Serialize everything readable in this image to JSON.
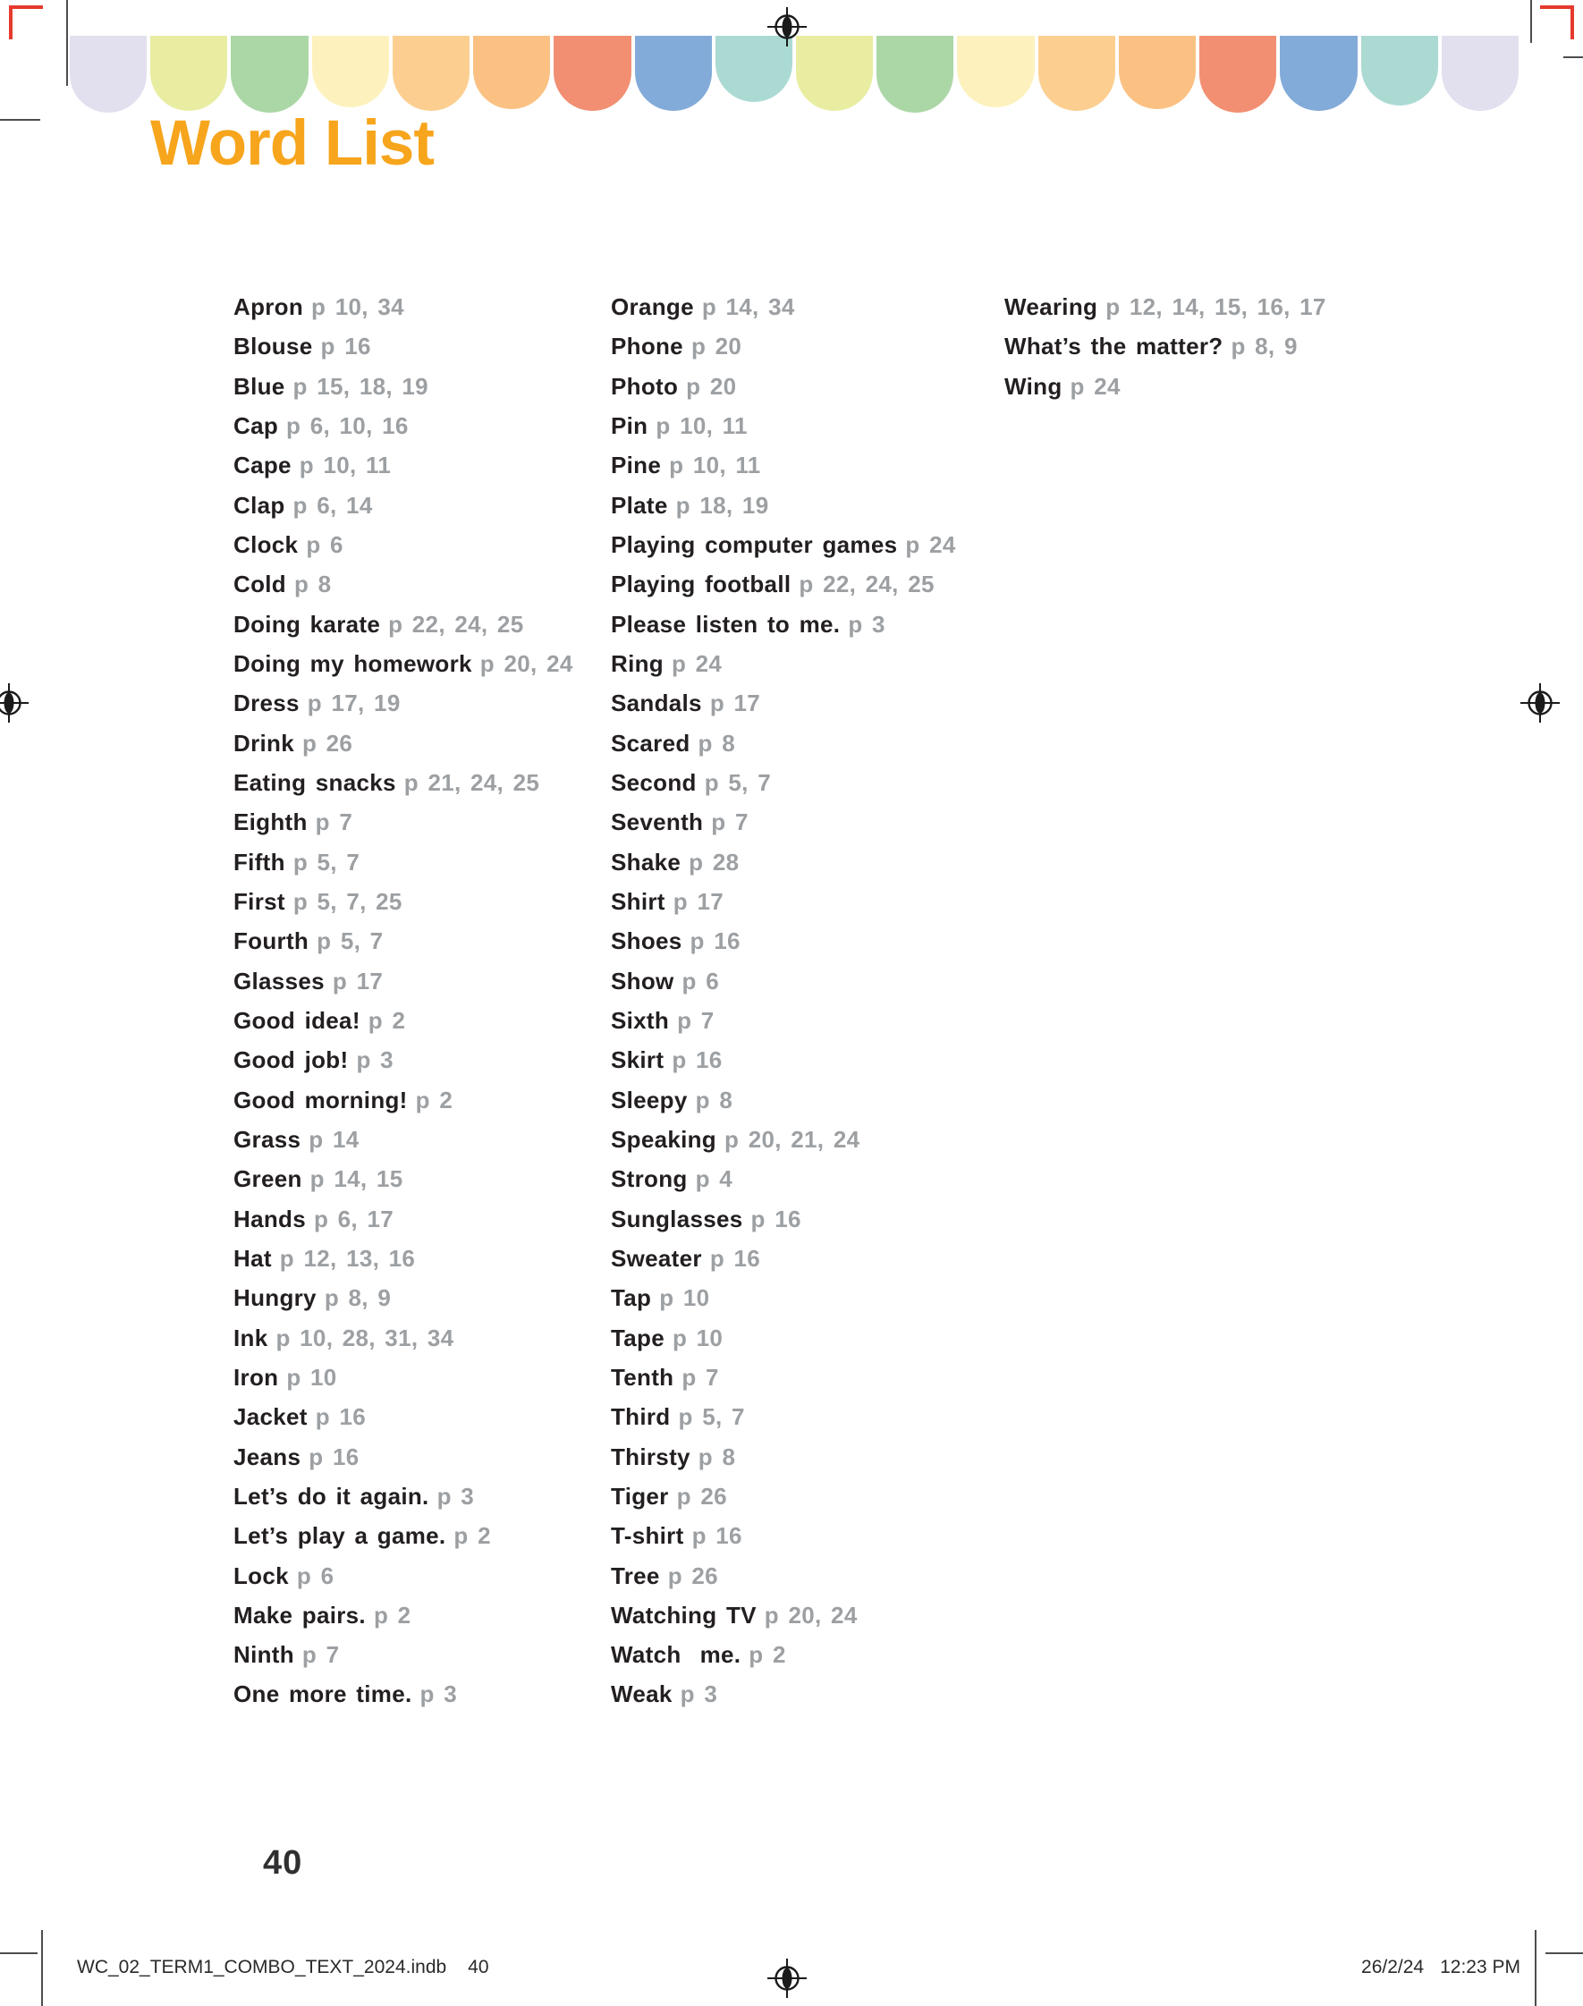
{
  "page": {
    "title": "Word List",
    "page_number": "40",
    "title_color": "#F7A51C",
    "word_color": "#231F20",
    "page_ref_color": "#9DA0A3"
  },
  "scallops": {
    "colors": [
      "#E2E0EE",
      "#E9EDA1",
      "#ABD7A6",
      "#FDF2BE",
      "#FCCF90",
      "#FBC183",
      "#F28F72",
      "#83ABD9",
      "#ABDAD3",
      "#E9EDA1",
      "#ABD7A6",
      "#FDF2BE",
      "#FCCF90",
      "#FBC183",
      "#F28F72",
      "#83ABD9",
      "#ABDAD3",
      "#E2E0EE"
    ]
  },
  "word_list": {
    "columns": [
      [
        {
          "word": "Apron",
          "pages": "p 10, 34"
        },
        {
          "word": "Blouse",
          "pages": "p 16"
        },
        {
          "word": "Blue",
          "pages": "p 15, 18, 19"
        },
        {
          "word": "Cap",
          "pages": "p 6, 10, 16"
        },
        {
          "word": "Cape",
          "pages": "p 10, 11"
        },
        {
          "word": "Clap",
          "pages": "p 6, 14"
        },
        {
          "word": "Clock",
          "pages": "p 6"
        },
        {
          "word": "Cold",
          "pages": "p 8"
        },
        {
          "word": "Doing karate",
          "pages": "p 22, 24, 25"
        },
        {
          "word": "Doing my homework",
          "pages": "p 20, 24"
        },
        {
          "word": "Dress",
          "pages": "p 17, 19"
        },
        {
          "word": "Drink",
          "pages": "p 26"
        },
        {
          "word": "Eating snacks",
          "pages": "p 21, 24, 25"
        },
        {
          "word": "Eighth",
          "pages": "p 7"
        },
        {
          "word": "Fifth",
          "pages": "p 5, 7"
        },
        {
          "word": "First",
          "pages": "p 5, 7, 25"
        },
        {
          "word": "Fourth",
          "pages": "p 5, 7"
        },
        {
          "word": "Glasses",
          "pages": "p 17"
        },
        {
          "word": "Good idea!",
          "pages": "p 2"
        },
        {
          "word": "Good job!",
          "pages": "p 3"
        },
        {
          "word": "Good morning!",
          "pages": "p 2"
        },
        {
          "word": "Grass",
          "pages": "p 14"
        },
        {
          "word": "Green",
          "pages": "p 14, 15"
        },
        {
          "word": "Hands",
          "pages": "p 6, 17"
        },
        {
          "word": "Hat",
          "pages": "p 12, 13, 16"
        },
        {
          "word": "Hungry",
          "pages": "p 8, 9"
        },
        {
          "word": "Ink",
          "pages": "p 10, 28, 31, 34"
        },
        {
          "word": "Iron",
          "pages": "p 10"
        },
        {
          "word": "Jacket",
          "pages": "p 16"
        },
        {
          "word": "Jeans",
          "pages": "p 16"
        },
        {
          "word": "Let’s do it again.",
          "pages": "p 3"
        },
        {
          "word": "Let’s play a game.",
          "pages": "p 2"
        },
        {
          "word": "Lock",
          "pages": "p 6"
        },
        {
          "word": "Make pairs.",
          "pages": "p 2"
        },
        {
          "word": "Ninth",
          "pages": "p 7"
        },
        {
          "word": "One more time.",
          "pages": "p 3"
        }
      ],
      [
        {
          "word": "Orange",
          "pages": "p 14, 34"
        },
        {
          "word": "Phone",
          "pages": "p 20"
        },
        {
          "word": "Photo",
          "pages": "p 20"
        },
        {
          "word": "Pin",
          "pages": "p 10, 11"
        },
        {
          "word": "Pine",
          "pages": "p 10, 11"
        },
        {
          "word": "Plate",
          "pages": "p 18, 19"
        },
        {
          "word": "Playing computer games",
          "pages": "p 24"
        },
        {
          "word": "Playing football",
          "pages": "p 22, 24, 25"
        },
        {
          "word": "Please listen to me.",
          "pages": "p 3"
        },
        {
          "word": "Ring",
          "pages": "p 24"
        },
        {
          "word": "Sandals",
          "pages": "p 17"
        },
        {
          "word": "Scared",
          "pages": "p 8"
        },
        {
          "word": "Second",
          "pages": "p 5, 7"
        },
        {
          "word": "Seventh",
          "pages": "p 7"
        },
        {
          "word": "Shake",
          "pages": "p 28"
        },
        {
          "word": "Shirt",
          "pages": "p 17"
        },
        {
          "word": "Shoes",
          "pages": "p 16"
        },
        {
          "word": "Show",
          "pages": "p 6"
        },
        {
          "word": "Sixth",
          "pages": "p 7"
        },
        {
          "word": "Skirt",
          "pages": "p 16"
        },
        {
          "word": "Sleepy",
          "pages": "p 8"
        },
        {
          "word": "Speaking",
          "pages": "p 20, 21, 24"
        },
        {
          "word": "Strong",
          "pages": "p 4"
        },
        {
          "word": "Sunglasses",
          "pages": "p 16"
        },
        {
          "word": "Sweater",
          "pages": "p 16"
        },
        {
          "word": "Tap",
          "pages": "p 10"
        },
        {
          "word": "Tape",
          "pages": "p 10"
        },
        {
          "word": "Tenth",
          "pages": "p 7"
        },
        {
          "word": "Third",
          "pages": "p 5, 7"
        },
        {
          "word": "Thirsty",
          "pages": "p 8"
        },
        {
          "word": "Tiger",
          "pages": "p 26"
        },
        {
          "word": "T-shirt",
          "pages": "p 16"
        },
        {
          "word": "Tree",
          "pages": "p 26"
        },
        {
          "word": "Watching TV",
          "pages": "p 20, 24"
        },
        {
          "word": "Watch  me.",
          "pages": "p 2"
        },
        {
          "word": "Weak",
          "pages": "p 3"
        }
      ],
      [
        {
          "word": "Wearing",
          "pages": "p 12, 14, 15, 16, 17"
        },
        {
          "word": "What’s the matter?",
          "pages": "p 8, 9"
        },
        {
          "word": "Wing",
          "pages": "p 24"
        }
      ]
    ]
  },
  "footer": {
    "left_file": "WC_02_TERM1_COMBO_TEXT_2024.indb",
    "left_num": "40",
    "right_date": "26/2/24",
    "right_time": "12:23 PM"
  }
}
